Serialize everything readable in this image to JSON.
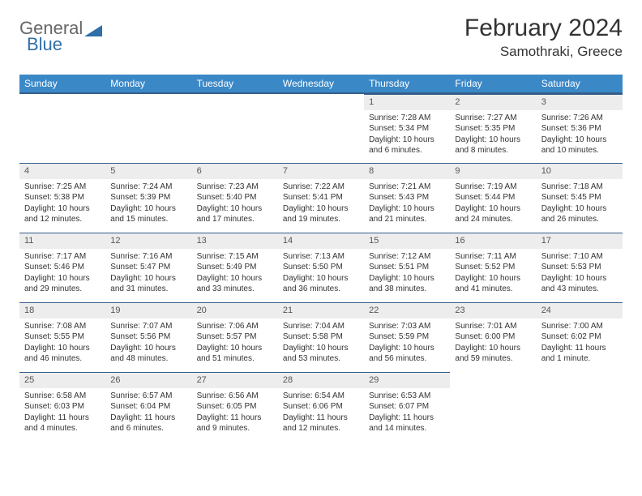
{
  "logo": {
    "general": "General",
    "blue": "Blue"
  },
  "title": "February 2024",
  "location": "Samothraki, Greece",
  "colors": {
    "header_bg": "#3b88c7",
    "header_border": "#355e8a",
    "daynum_bg": "#ededed",
    "text": "#333333"
  },
  "weekdays": [
    "Sunday",
    "Monday",
    "Tuesday",
    "Wednesday",
    "Thursday",
    "Friday",
    "Saturday"
  ],
  "weeks": [
    [
      null,
      null,
      null,
      null,
      {
        "n": "1",
        "sr": "Sunrise: 7:28 AM",
        "ss": "Sunset: 5:34 PM",
        "dl": "Daylight: 10 hours and 6 minutes."
      },
      {
        "n": "2",
        "sr": "Sunrise: 7:27 AM",
        "ss": "Sunset: 5:35 PM",
        "dl": "Daylight: 10 hours and 8 minutes."
      },
      {
        "n": "3",
        "sr": "Sunrise: 7:26 AM",
        "ss": "Sunset: 5:36 PM",
        "dl": "Daylight: 10 hours and 10 minutes."
      }
    ],
    [
      {
        "n": "4",
        "sr": "Sunrise: 7:25 AM",
        "ss": "Sunset: 5:38 PM",
        "dl": "Daylight: 10 hours and 12 minutes."
      },
      {
        "n": "5",
        "sr": "Sunrise: 7:24 AM",
        "ss": "Sunset: 5:39 PM",
        "dl": "Daylight: 10 hours and 15 minutes."
      },
      {
        "n": "6",
        "sr": "Sunrise: 7:23 AM",
        "ss": "Sunset: 5:40 PM",
        "dl": "Daylight: 10 hours and 17 minutes."
      },
      {
        "n": "7",
        "sr": "Sunrise: 7:22 AM",
        "ss": "Sunset: 5:41 PM",
        "dl": "Daylight: 10 hours and 19 minutes."
      },
      {
        "n": "8",
        "sr": "Sunrise: 7:21 AM",
        "ss": "Sunset: 5:43 PM",
        "dl": "Daylight: 10 hours and 21 minutes."
      },
      {
        "n": "9",
        "sr": "Sunrise: 7:19 AM",
        "ss": "Sunset: 5:44 PM",
        "dl": "Daylight: 10 hours and 24 minutes."
      },
      {
        "n": "10",
        "sr": "Sunrise: 7:18 AM",
        "ss": "Sunset: 5:45 PM",
        "dl": "Daylight: 10 hours and 26 minutes."
      }
    ],
    [
      {
        "n": "11",
        "sr": "Sunrise: 7:17 AM",
        "ss": "Sunset: 5:46 PM",
        "dl": "Daylight: 10 hours and 29 minutes."
      },
      {
        "n": "12",
        "sr": "Sunrise: 7:16 AM",
        "ss": "Sunset: 5:47 PM",
        "dl": "Daylight: 10 hours and 31 minutes."
      },
      {
        "n": "13",
        "sr": "Sunrise: 7:15 AM",
        "ss": "Sunset: 5:49 PM",
        "dl": "Daylight: 10 hours and 33 minutes."
      },
      {
        "n": "14",
        "sr": "Sunrise: 7:13 AM",
        "ss": "Sunset: 5:50 PM",
        "dl": "Daylight: 10 hours and 36 minutes."
      },
      {
        "n": "15",
        "sr": "Sunrise: 7:12 AM",
        "ss": "Sunset: 5:51 PM",
        "dl": "Daylight: 10 hours and 38 minutes."
      },
      {
        "n": "16",
        "sr": "Sunrise: 7:11 AM",
        "ss": "Sunset: 5:52 PM",
        "dl": "Daylight: 10 hours and 41 minutes."
      },
      {
        "n": "17",
        "sr": "Sunrise: 7:10 AM",
        "ss": "Sunset: 5:53 PM",
        "dl": "Daylight: 10 hours and 43 minutes."
      }
    ],
    [
      {
        "n": "18",
        "sr": "Sunrise: 7:08 AM",
        "ss": "Sunset: 5:55 PM",
        "dl": "Daylight: 10 hours and 46 minutes."
      },
      {
        "n": "19",
        "sr": "Sunrise: 7:07 AM",
        "ss": "Sunset: 5:56 PM",
        "dl": "Daylight: 10 hours and 48 minutes."
      },
      {
        "n": "20",
        "sr": "Sunrise: 7:06 AM",
        "ss": "Sunset: 5:57 PM",
        "dl": "Daylight: 10 hours and 51 minutes."
      },
      {
        "n": "21",
        "sr": "Sunrise: 7:04 AM",
        "ss": "Sunset: 5:58 PM",
        "dl": "Daylight: 10 hours and 53 minutes."
      },
      {
        "n": "22",
        "sr": "Sunrise: 7:03 AM",
        "ss": "Sunset: 5:59 PM",
        "dl": "Daylight: 10 hours and 56 minutes."
      },
      {
        "n": "23",
        "sr": "Sunrise: 7:01 AM",
        "ss": "Sunset: 6:00 PM",
        "dl": "Daylight: 10 hours and 59 minutes."
      },
      {
        "n": "24",
        "sr": "Sunrise: 7:00 AM",
        "ss": "Sunset: 6:02 PM",
        "dl": "Daylight: 11 hours and 1 minute."
      }
    ],
    [
      {
        "n": "25",
        "sr": "Sunrise: 6:58 AM",
        "ss": "Sunset: 6:03 PM",
        "dl": "Daylight: 11 hours and 4 minutes."
      },
      {
        "n": "26",
        "sr": "Sunrise: 6:57 AM",
        "ss": "Sunset: 6:04 PM",
        "dl": "Daylight: 11 hours and 6 minutes."
      },
      {
        "n": "27",
        "sr": "Sunrise: 6:56 AM",
        "ss": "Sunset: 6:05 PM",
        "dl": "Daylight: 11 hours and 9 minutes."
      },
      {
        "n": "28",
        "sr": "Sunrise: 6:54 AM",
        "ss": "Sunset: 6:06 PM",
        "dl": "Daylight: 11 hours and 12 minutes."
      },
      {
        "n": "29",
        "sr": "Sunrise: 6:53 AM",
        "ss": "Sunset: 6:07 PM",
        "dl": "Daylight: 11 hours and 14 minutes."
      },
      null,
      null
    ]
  ]
}
